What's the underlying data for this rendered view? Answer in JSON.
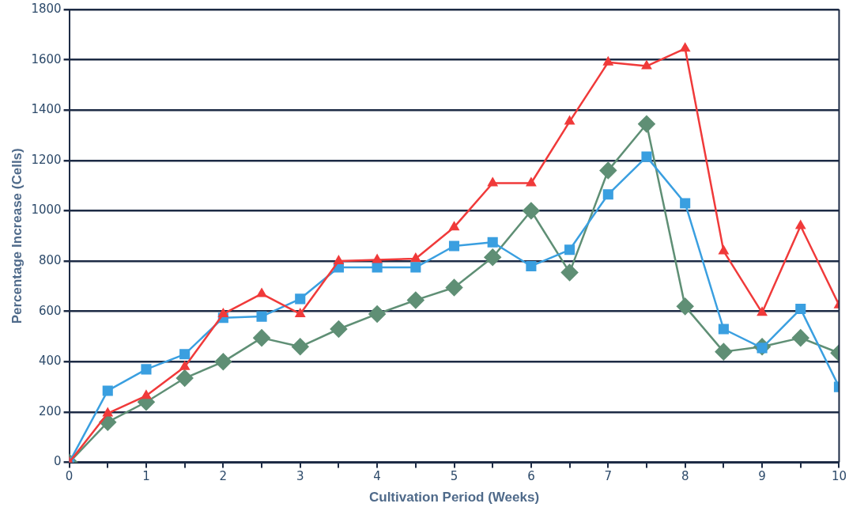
{
  "chart_data": {
    "type": "line",
    "xlabel": "Cultivation Period (Weeks)",
    "ylabel": "Percentage Increase (Cells)",
    "x": [
      0,
      0.5,
      1,
      1.5,
      2,
      2.5,
      3,
      3.5,
      4,
      4.5,
      5,
      5.5,
      6,
      6.5,
      7,
      7.5,
      8,
      8.5,
      9,
      9.5,
      10
    ],
    "series": [
      {
        "color": "#f03a3a",
        "marker": "triangle",
        "values": [
          0,
          195,
          265,
          380,
          590,
          670,
          590,
          800,
          805,
          810,
          935,
          1110,
          1110,
          1355,
          1590,
          1575,
          1645,
          840,
          595,
          940,
          625
        ]
      },
      {
        "color": "#3a9fe0",
        "marker": "square",
        "values": [
          0,
          285,
          370,
          430,
          575,
          580,
          650,
          775,
          775,
          775,
          860,
          875,
          780,
          845,
          1065,
          1215,
          1030,
          530,
          455,
          610,
          300
        ]
      },
      {
        "color": "#5f8f75",
        "marker": "diamond",
        "values": [
          0,
          160,
          240,
          335,
          400,
          495,
          460,
          530,
          590,
          645,
          695,
          815,
          1000,
          755,
          1160,
          1345,
          620,
          440,
          460,
          495,
          435
        ]
      }
    ],
    "xlim": [
      0,
      10
    ],
    "xticks": [
      0,
      {
        "value": 0.5,
        "label": null
      },
      1,
      {
        "value": 1.5,
        "label": null
      },
      2,
      {
        "value": 2.5,
        "label": null
      },
      3,
      {
        "value": 3.5,
        "label": null
      },
      4,
      {
        "value": 4.5,
        "label": null
      },
      5,
      {
        "value": 5.5,
        "label": null
      },
      6,
      {
        "value": 6.5,
        "label": null
      },
      7,
      {
        "value": 7.5,
        "label": null
      },
      8,
      {
        "value": 8.5,
        "label": null
      },
      9,
      {
        "value": 9.5,
        "label": null
      },
      10
    ],
    "ylim": [
      0,
      1800
    ],
    "yticks": [
      0,
      200,
      400,
      600,
      800,
      1000,
      1200,
      1400,
      1600,
      1800
    ],
    "grid": "y",
    "legend": false,
    "line_style": "solid"
  }
}
